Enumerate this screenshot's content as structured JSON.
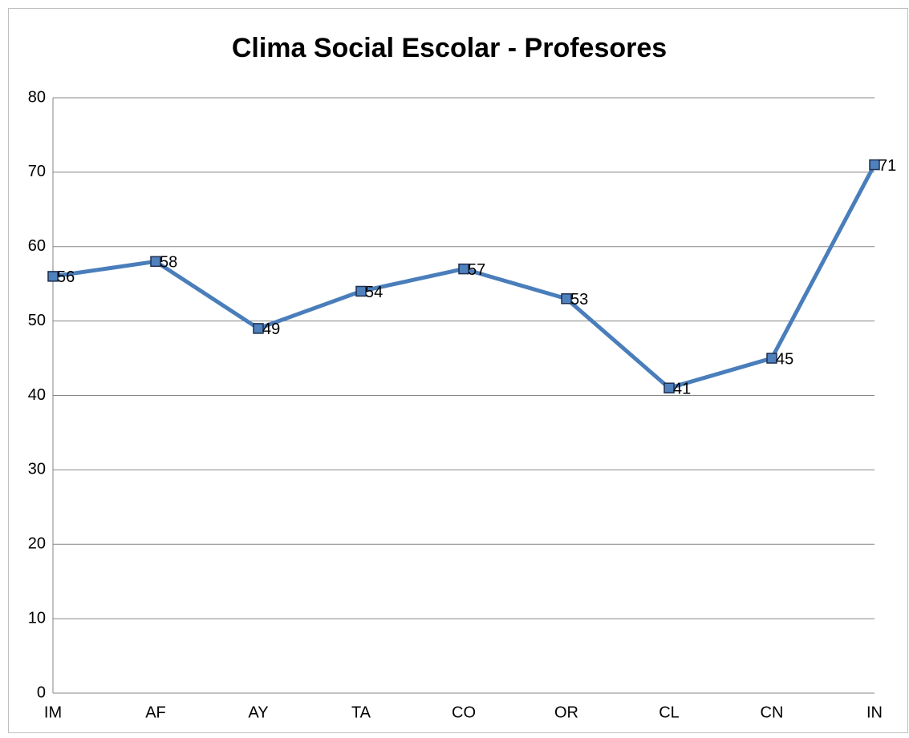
{
  "chart_data": {
    "type": "line",
    "title": "Clima Social Escolar - Profesores",
    "categories": [
      "IM",
      "AF",
      "AY",
      "TA",
      "CO",
      "OR",
      "CL",
      "CN",
      "IN"
    ],
    "values": [
      56,
      58,
      49,
      54,
      57,
      53,
      41,
      45,
      71
    ],
    "color": "#4a7ebb",
    "ylim": [
      0,
      80
    ],
    "yticks": [
      0,
      10,
      20,
      30,
      40,
      50,
      60,
      70,
      80
    ],
    "grid": true
  }
}
